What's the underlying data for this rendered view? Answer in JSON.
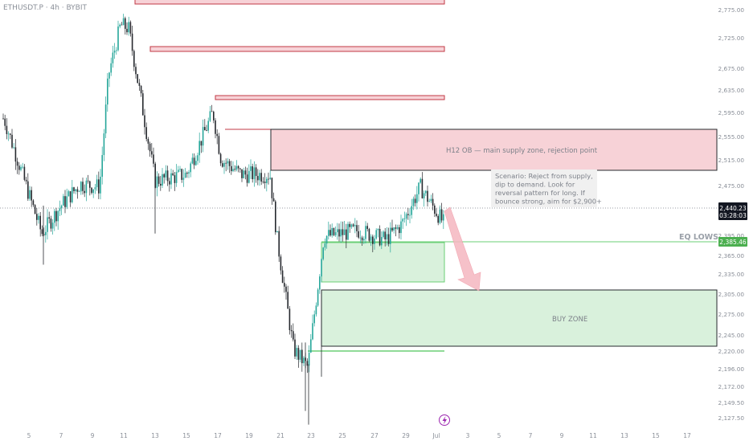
{
  "symbol_label": "ETHUSDT.P · 4h · BYBIT",
  "colors": {
    "bull": "#26a69a",
    "bear": "#26292e",
    "supply_fill": "#f7d2d7",
    "supply_stroke": "#c23a45",
    "demand_fill": "#d9f1dc",
    "demand_stroke": "#5ec46b",
    "demand_line": "#6bcf76",
    "arrow": "#f5b7c0",
    "price_tag_bg": "#131722",
    "eq_tag_bg": "#4caf50",
    "axis_text": "#8a8f98",
    "annotation_text": "#8a8f98"
  },
  "annotations": {
    "supply_label": "H12 OB — main supply zone, rejection point",
    "scenario_lines": [
      "Scenario: Reject from supply,",
      "dip to demand. Look for",
      "reversal pattern for long. If",
      "bounce strong, aim for $2,900+"
    ],
    "buy_zone_label": "BUY ZONE",
    "eq_lows_label": "EQ LOWS",
    "lightning_icon": "lightning-icon"
  },
  "price_axis": {
    "labels": [
      "2,775.00",
      "2,725.00",
      "2,675.00",
      "2,635.00",
      "2,595.00",
      "2,555.00",
      "2,515.00",
      "2,475.00",
      "2,395.00",
      "2,365.00",
      "2,335.00",
      "2,305.00",
      "2,275.00",
      "2,245.00",
      "2,220.00",
      "2,196.00",
      "2,172.00",
      "2,149.50",
      "2,127.50"
    ],
    "current_price": "2,440.23",
    "countdown": "03:28:03",
    "eq_price": "2,385.46"
  },
  "time_axis": {
    "labels": [
      "5",
      "7",
      "9",
      "11",
      "13",
      "15",
      "17",
      "19",
      "21",
      "23",
      "25",
      "27",
      "29",
      "Jul",
      "3",
      "5",
      "7",
      "9",
      "11",
      "13",
      "15",
      "17"
    ]
  },
  "chart_data": {
    "type": "candlestick",
    "title": "ETHUSDT.P · 4h · BYBIT",
    "ylim": [
      2115,
      2790
    ],
    "approx_closes": [
      {
        "date": "Jun 5",
        "price": 2610
      },
      {
        "date": "Jun 6",
        "price": 2425
      },
      {
        "date": "Jun 7",
        "price": 2470
      },
      {
        "date": "Jun 8",
        "price": 2505
      },
      {
        "date": "Jun 9",
        "price": 2500
      },
      {
        "date": "Jun 10",
        "price": 2680
      },
      {
        "date": "Jun 11",
        "price": 2760
      },
      {
        "date": "Jun 12",
        "price": 2755
      },
      {
        "date": "Jun 13",
        "price": 2510
      },
      {
        "date": "Jun 15",
        "price": 2520
      },
      {
        "date": "Jun 16",
        "price": 2620
      },
      {
        "date": "Jun 17",
        "price": 2545
      },
      {
        "date": "Jun 18",
        "price": 2520
      },
      {
        "date": "Jun 20",
        "price": 2520
      },
      {
        "date": "Jun 21",
        "price": 2415
      },
      {
        "date": "Jun 22",
        "price": 2240
      },
      {
        "date": "Jun 23",
        "price": 2210
      },
      {
        "date": "Jun 24",
        "price": 2420
      },
      {
        "date": "Jun 26",
        "price": 2430
      },
      {
        "date": "Jun 28",
        "price": 2415
      },
      {
        "date": "Jun 29",
        "price": 2440
      },
      {
        "date": "Jun 30",
        "price": 2500
      },
      {
        "date": "Jul 1",
        "price": 2440
      }
    ],
    "zones": [
      {
        "name": "supply",
        "from": 2778,
        "to": 2790
      },
      {
        "name": "supply",
        "from": 2697,
        "to": 2703
      },
      {
        "name": "supply",
        "from": 2614,
        "to": 2619
      },
      {
        "name": "H12 OB supply",
        "from": 2497,
        "to": 2567
      },
      {
        "name": "demand",
        "from": 2320,
        "to": 2383
      },
      {
        "name": "BUY ZONE",
        "from": 2235,
        "to": 2303
      }
    ],
    "levels": [
      {
        "name": "EQ LOWS",
        "price": 2385.46
      },
      {
        "name": "current",
        "price": 2440.23
      },
      {
        "name": "low line",
        "price": 2217
      }
    ]
  }
}
